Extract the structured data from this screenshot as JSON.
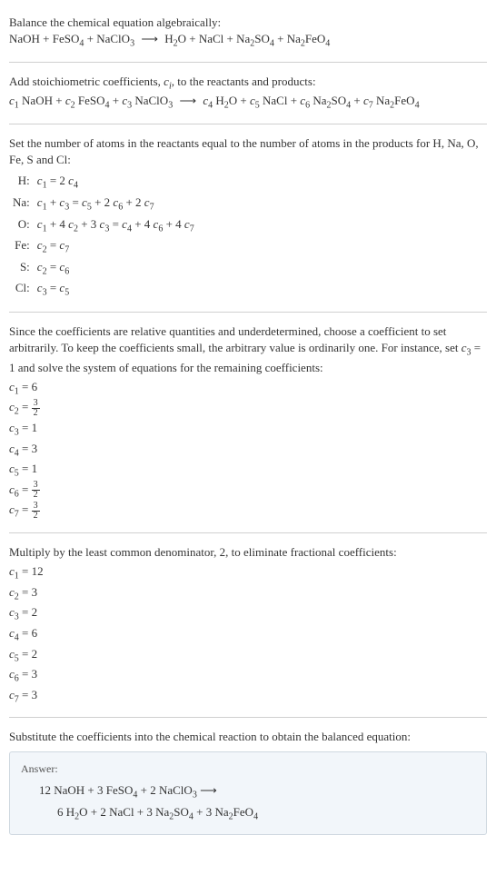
{
  "section1": {
    "intro": "Balance the chemical equation algebraically:",
    "eq_left": "NaOH + FeSO",
    "eq_s1": "4",
    "eq_m1": " + NaClO",
    "eq_s2": "3",
    "arrow": " ⟶ ",
    "eq_r1": "H",
    "eq_s3": "2",
    "eq_r2": "O + NaCl + Na",
    "eq_s4": "2",
    "eq_r3": "SO",
    "eq_s5": "4",
    "eq_r4": " + Na",
    "eq_s6": "2",
    "eq_r5": "FeO",
    "eq_s7": "4"
  },
  "section2": {
    "intro1": "Add stoichiometric coefficients, ",
    "ci": "c",
    "ci_sub": "i",
    "intro2": ", to the reactants and products:",
    "c1": "c",
    "n1": "1",
    "t1": " NaOH + ",
    "c2": "c",
    "n2": "2",
    "t2": " FeSO",
    "s2": "4",
    "t2b": " + ",
    "c3": "c",
    "n3": "3",
    "t3": " NaClO",
    "s3": "3",
    "arrow": " ⟶ ",
    "c4": "c",
    "n4": "4",
    "t4": " H",
    "s4": "2",
    "t4b": "O + ",
    "c5": "c",
    "n5": "5",
    "t5": " NaCl + ",
    "c6": "c",
    "n6": "6",
    "t6": " Na",
    "s6a": "2",
    "t6b": "SO",
    "s6b": "4",
    "t6c": " + ",
    "c7": "c",
    "n7": "7",
    "t7": " Na",
    "s7a": "2",
    "t7b": "FeO",
    "s7b": "4"
  },
  "section3": {
    "intro": "Set the number of atoms in the reactants equal to the number of atoms in the products for H, Na, O, Fe, S and Cl:",
    "rows": [
      {
        "el": "H:",
        "eq_parts": [
          "c",
          "1",
          " = 2 ",
          "c",
          "4"
        ]
      },
      {
        "el": "Na:",
        "eq_parts": [
          "c",
          "1",
          " + ",
          "c",
          "3",
          " = ",
          "c",
          "5",
          " + 2 ",
          "c",
          "6",
          " + 2 ",
          "c",
          "7"
        ]
      },
      {
        "el": "O:",
        "eq_parts": [
          "c",
          "1",
          " + 4 ",
          "c",
          "2",
          " + 3 ",
          "c",
          "3",
          " = ",
          "c",
          "4",
          " + 4 ",
          "c",
          "6",
          " + 4 ",
          "c",
          "7"
        ]
      },
      {
        "el": "Fe:",
        "eq_parts": [
          "c",
          "2",
          " = ",
          "c",
          "7"
        ]
      },
      {
        "el": "S:",
        "eq_parts": [
          "c",
          "2",
          " = ",
          "c",
          "6"
        ]
      },
      {
        "el": "Cl:",
        "eq_parts": [
          "c",
          "3",
          " = ",
          "c",
          "5"
        ]
      }
    ]
  },
  "section4": {
    "intro1": "Since the coefficients are relative quantities and underdetermined, choose a coefficient to set arbitrarily. To keep the coefficients small, the arbitrary value is ordinarily one. For instance, set ",
    "c3": "c",
    "n3": "3",
    "eq1": " = 1",
    "intro2": " and solve the system of equations for the remaining coefficients:",
    "coeffs": [
      {
        "c": "c",
        "n": "1",
        "val": " = 6",
        "frac": null
      },
      {
        "c": "c",
        "n": "2",
        "val": " = ",
        "frac": {
          "num": "3",
          "den": "2"
        }
      },
      {
        "c": "c",
        "n": "3",
        "val": " = 1",
        "frac": null
      },
      {
        "c": "c",
        "n": "4",
        "val": " = 3",
        "frac": null
      },
      {
        "c": "c",
        "n": "5",
        "val": " = 1",
        "frac": null
      },
      {
        "c": "c",
        "n": "6",
        "val": " = ",
        "frac": {
          "num": "3",
          "den": "2"
        }
      },
      {
        "c": "c",
        "n": "7",
        "val": " = ",
        "frac": {
          "num": "3",
          "den": "2"
        }
      }
    ]
  },
  "section5": {
    "intro": "Multiply by the least common denominator, 2, to eliminate fractional coefficients:",
    "coeffs": [
      {
        "c": "c",
        "n": "1",
        "val": " = 12"
      },
      {
        "c": "c",
        "n": "2",
        "val": " = 3"
      },
      {
        "c": "c",
        "n": "3",
        "val": " = 2"
      },
      {
        "c": "c",
        "n": "4",
        "val": " = 6"
      },
      {
        "c": "c",
        "n": "5",
        "val": " = 2"
      },
      {
        "c": "c",
        "n": "6",
        "val": " = 3"
      },
      {
        "c": "c",
        "n": "7",
        "val": " = 3"
      }
    ]
  },
  "section6": {
    "intro": "Substitute the coefficients into the chemical reaction to obtain the balanced equation:",
    "answer_label": "Answer:",
    "line1_a": "12 NaOH + 3 FeSO",
    "line1_s1": "4",
    "line1_b": " + 2 NaClO",
    "line1_s2": "3",
    "line1_arrow": " ⟶",
    "line2_a": "6 H",
    "line2_s1": "2",
    "line2_b": "O + 2 NaCl + 3 Na",
    "line2_s2": "2",
    "line2_c": "SO",
    "line2_s3": "4",
    "line2_d": " + 3 Na",
    "line2_s4": "2",
    "line2_e": "FeO",
    "line2_s5": "4"
  }
}
